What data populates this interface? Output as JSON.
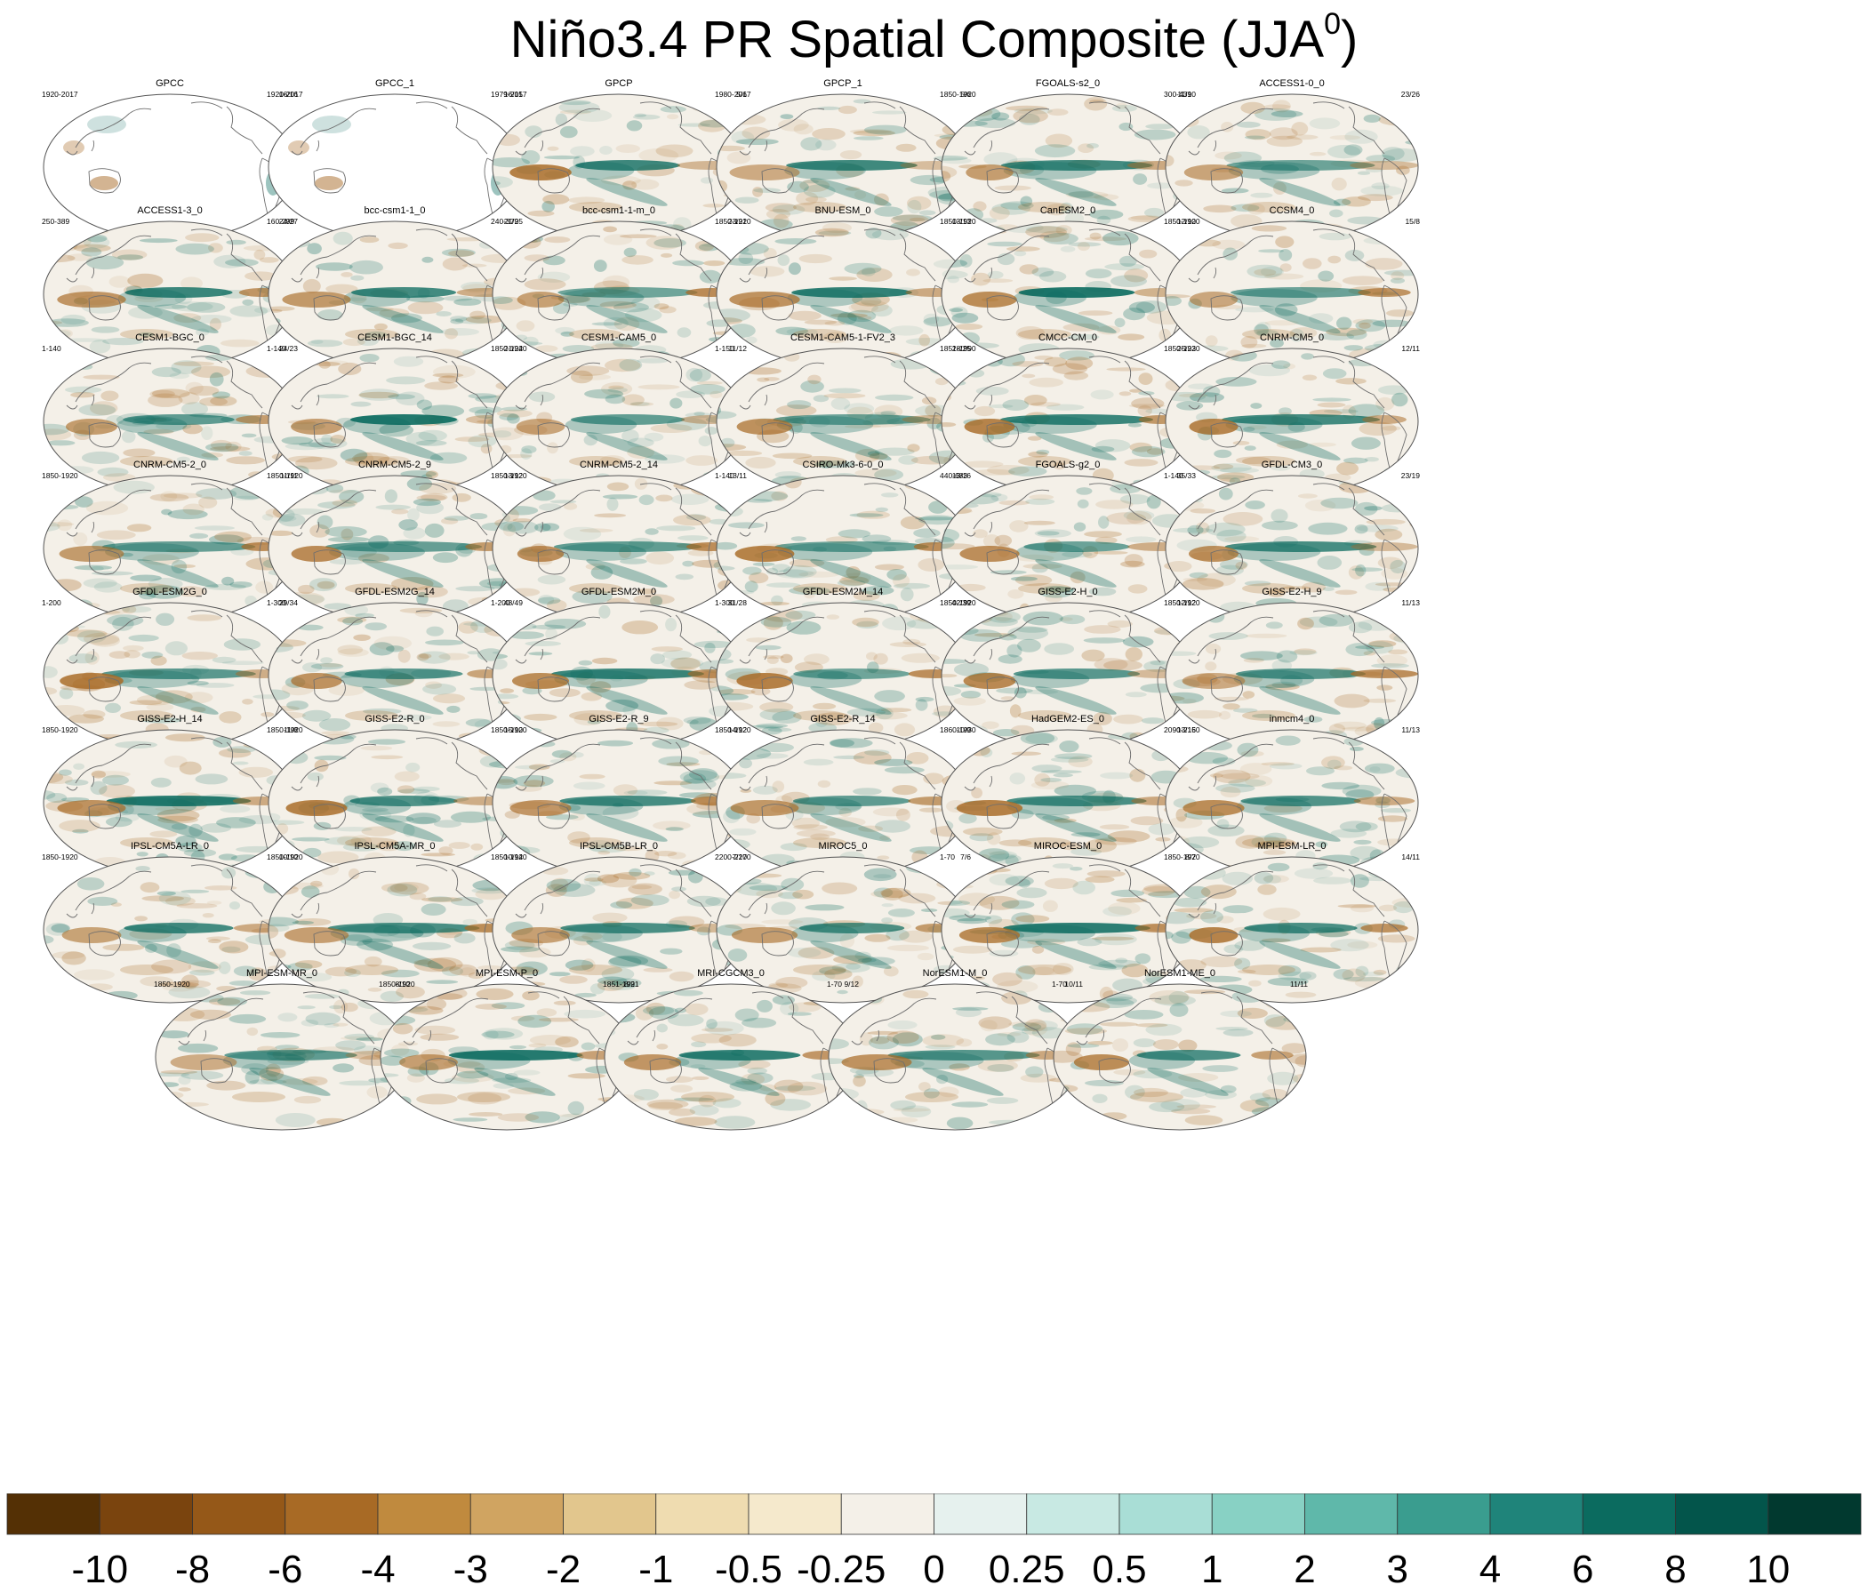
{
  "title": {
    "text": "Niño3.4 PR Spatial Composite (JJA",
    "superscript": "0",
    "close": ")"
  },
  "chart_data": {
    "type": "heatmap",
    "variable": "PR",
    "season": "JJA0",
    "panels": [
      {
        "name": "GPCC",
        "period": "1920-2017",
        "count": "16/16",
        "land_only": true
      },
      {
        "name": "GPCC_1",
        "period": "1920-2017",
        "count": "16/15",
        "land_only": true
      },
      {
        "name": "GPCP",
        "period": "1979-2017",
        "count": "5/6"
      },
      {
        "name": "GPCP_1",
        "period": "1980-2017",
        "count": "5/6"
      },
      {
        "name": "FGOALS-s2_0",
        "period": "1850-1920",
        "count": "11/10"
      },
      {
        "name": "ACCESS1-0_0",
        "period": "300-439",
        "count": "23/26"
      },
      {
        "name": "ACCESS1-3_0",
        "period": "250-389",
        "count": "24/27"
      },
      {
        "name": "bcc-csm1-1_0",
        "period": "160-299",
        "count": "21/25"
      },
      {
        "name": "bcc-csm1-1-m_0",
        "period": "240-379",
        "count": "23/21"
      },
      {
        "name": "BNU-ESM_0",
        "period": "1850-1920",
        "count": "13/13"
      },
      {
        "name": "CanESM2_0",
        "period": "1850-1920",
        "count": "12/10"
      },
      {
        "name": "CCSM4_0",
        "period": "1850-1920",
        "count": "15/8"
      },
      {
        "name": "CESM1-BGC_0",
        "period": "1-140",
        "count": "24/23"
      },
      {
        "name": "CESM1-BGC_14",
        "period": "1-140",
        "count": "21/24"
      },
      {
        "name": "CESM1-CAM5_0",
        "period": "1850-1920",
        "count": "11/12"
      },
      {
        "name": "CESM1-CAM5-1-FV2_3",
        "period": "1-150",
        "count": "28/25"
      },
      {
        "name": "CMCC-CM_0",
        "period": "1851-1990",
        "count": "25/23"
      },
      {
        "name": "CNRM-CM5_0",
        "period": "1850-1920",
        "count": "12/11"
      },
      {
        "name": "CNRM-CM5-2_0",
        "period": "1850-1920",
        "count": "11/11"
      },
      {
        "name": "CNRM-CM5-2_9",
        "period": "1850-1920",
        "count": "13/12"
      },
      {
        "name": "CNRM-CM5-2_14",
        "period": "1850-1920",
        "count": "13/11"
      },
      {
        "name": "CSIRO-Mk3-6-0_0",
        "period": "1-140",
        "count": "13/16"
      },
      {
        "name": "FGOALS-g2_0",
        "period": "440-683",
        "count": "35/33"
      },
      {
        "name": "GFDL-CM3_0",
        "period": "1-140",
        "count": "23/19"
      },
      {
        "name": "GFDL-ESM2G_0",
        "period": "1-200",
        "count": "29/34"
      },
      {
        "name": "GFDL-ESM2G_14",
        "period": "1-300",
        "count": "48/49"
      },
      {
        "name": "GFDL-ESM2M_0",
        "period": "1-200",
        "count": "31/28"
      },
      {
        "name": "GFDL-ESM2M_14",
        "period": "1-300",
        "count": "42/39"
      },
      {
        "name": "GISS-E2-H_0",
        "period": "1850-1920",
        "count": "12/12"
      },
      {
        "name": "GISS-E2-H_9",
        "period": "1850-1920",
        "count": "11/13"
      },
      {
        "name": "GISS-E2-H_14",
        "period": "1850-1920",
        "count": "11/8"
      },
      {
        "name": "GISS-E2-R_0",
        "period": "1850-1920",
        "count": "15/10"
      },
      {
        "name": "GISS-E2-R_9",
        "period": "1850-1920",
        "count": "14/12"
      },
      {
        "name": "GISS-E2-R_14",
        "period": "1850-1920",
        "count": "10/9"
      },
      {
        "name": "HadGEM2-ES_0",
        "period": "1860-1930",
        "count": "13/15"
      },
      {
        "name": "inmcm4_0",
        "period": "2090-2160",
        "count": "11/13"
      },
      {
        "name": "IPSL-CM5A-LR_0",
        "period": "1850-1920",
        "count": "10/10"
      },
      {
        "name": "IPSL-CM5A-MR_0",
        "period": "1850-1920",
        "count": "10/14"
      },
      {
        "name": "IPSL-CM5B-LR_0",
        "period": "1850-1920",
        "count": "7/10"
      },
      {
        "name": "MIROC5_0",
        "period": "2200-2270",
        "count": "7/6"
      },
      {
        "name": "MIROC-ESM_0",
        "period": "1-70",
        "count": "8/7"
      },
      {
        "name": "MPI-ESM-LR_0",
        "period": "1850-1920",
        "count": "14/11"
      },
      {
        "name": "MPI-ESM-MR_0",
        "period": "1850-1920",
        "count": "8/10"
      },
      {
        "name": "MPI-ESM-P_0",
        "period": "1850-1920",
        "count": "8/9"
      },
      {
        "name": "MRI-CGCM3_0",
        "period": "1851-1921",
        "count": "9/12"
      },
      {
        "name": "NorESM1-M_0",
        "period": "1-70",
        "count": "10/11"
      },
      {
        "name": "NorESM1-ME_0",
        "period": "1-70",
        "count": "11/11"
      }
    ],
    "colorbar": {
      "levels": [
        -10,
        -8,
        -6,
        -4,
        -3,
        -2,
        -1,
        -0.5,
        -0.25,
        0,
        0.25,
        0.5,
        1,
        2,
        3,
        4,
        6,
        8,
        10
      ],
      "labels": [
        "-10",
        "-8",
        "-6",
        "-4",
        "-3",
        "-2",
        "-1",
        "-0.5",
        "-0.25",
        "0",
        "0.25",
        "0.5",
        "1",
        "2",
        "3",
        "4",
        "6",
        "8",
        "10"
      ],
      "colors": [
        "#543005",
        "#7a440e",
        "#955818",
        "#a86a25",
        "#c08a3e",
        "#d0a461",
        "#e2c68d",
        "#efdcb0",
        "#f5e9cc",
        "#f4f0e8",
        "#e6f1ee",
        "#c8e9e3",
        "#a9ded6",
        "#88d1c4",
        "#5fb8aa",
        "#3a9d8f",
        "#1f847a",
        "#0b6b5f",
        "#03554b",
        "#01392f"
      ]
    }
  },
  "map_style": {
    "dry_color": "#a86a25",
    "wet_color": "#0b6b5f",
    "coast_color": "#6e6e6e",
    "background": "#f4f0e8"
  }
}
